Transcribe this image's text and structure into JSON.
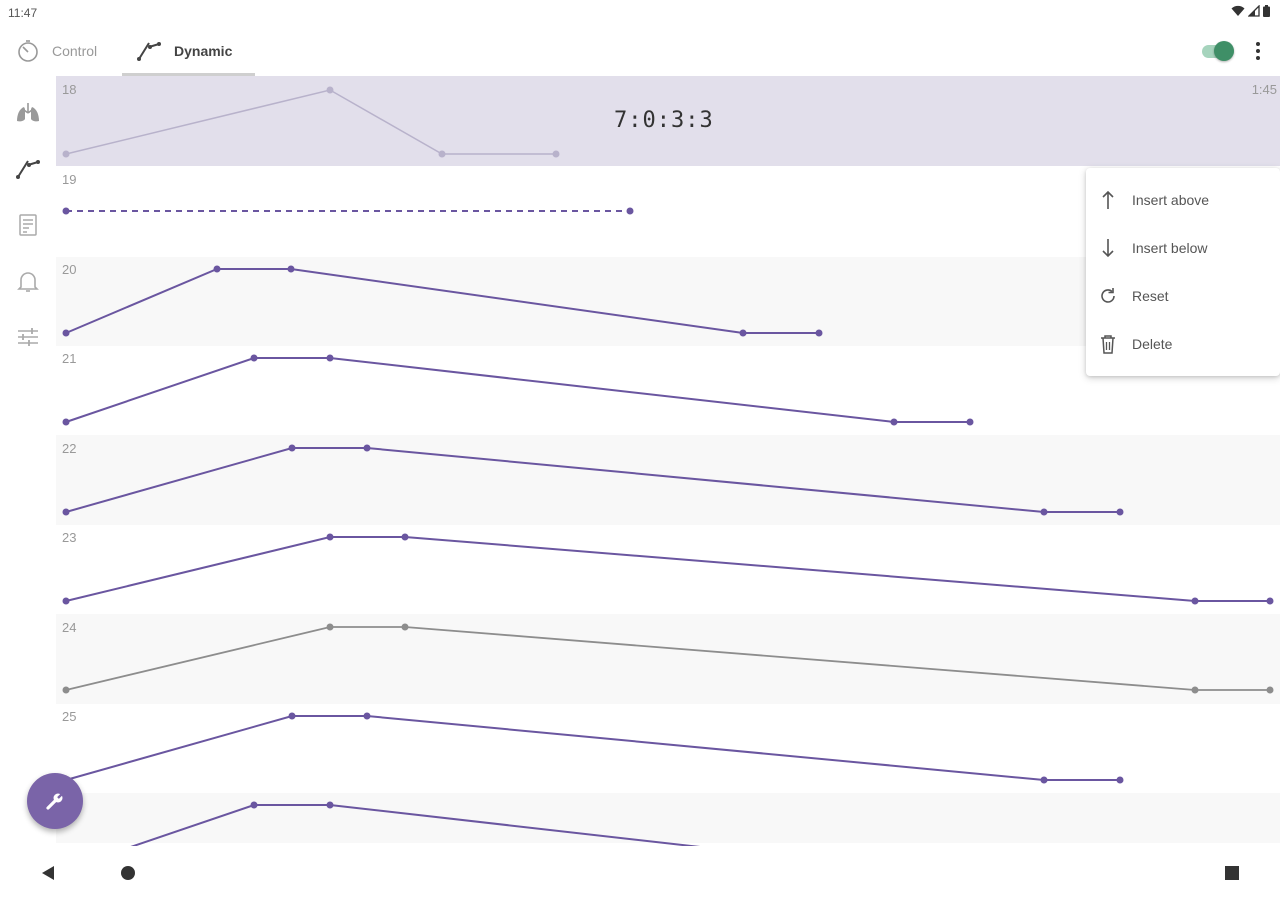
{
  "status_bar": {
    "time": "11:47",
    "icons": [
      "wifi-icon",
      "cell-signal-icon",
      "battery-icon"
    ]
  },
  "tabs": [
    {
      "label": "Control",
      "icon": "timer-icon",
      "selected": false
    },
    {
      "label": "Dynamic",
      "icon": "dynamic-chart-icon",
      "selected": true
    }
  ],
  "toggle": {
    "on": true,
    "color": "#3f8f67"
  },
  "rail_items": [
    "lungs-icon",
    "dynamic-chart-icon",
    "list-icon",
    "bell-icon",
    "sliders-icon"
  ],
  "header_row": {
    "number": "18",
    "timer": "7:0:3:3",
    "duration": "1:45"
  },
  "rows": [
    {
      "number": "19",
      "style": "dashed"
    },
    {
      "number": "20",
      "style": "solid"
    },
    {
      "number": "21",
      "style": "solid"
    },
    {
      "number": "22",
      "style": "solid"
    },
    {
      "number": "23",
      "style": "solid"
    },
    {
      "number": "24",
      "style": "gray"
    },
    {
      "number": "25",
      "style": "solid"
    }
  ],
  "context_menu": [
    {
      "label": "Insert above",
      "icon": "arrow-up-icon"
    },
    {
      "label": "Insert below",
      "icon": "arrow-down-icon"
    },
    {
      "label": "Reset",
      "icon": "refresh-icon"
    },
    {
      "label": "Delete",
      "icon": "trash-icon"
    }
  ],
  "fab": {
    "icon": "wrench-icon"
  },
  "nav_bar": [
    "back-icon",
    "home-icon",
    "recents-icon"
  ],
  "colors": {
    "accent": "#6a56a0",
    "highlight": "#e2dfeb",
    "gray_line": "#8d8d8d",
    "light_line": "#b8b2cb"
  }
}
